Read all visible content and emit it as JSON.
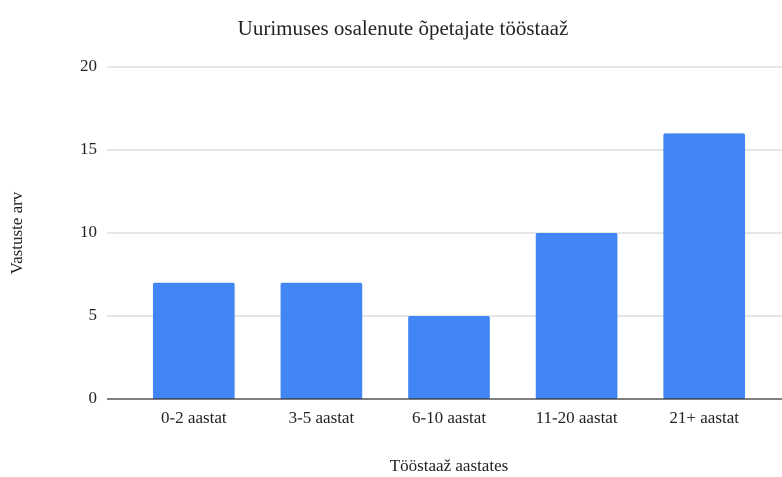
{
  "chart_data": {
    "type": "bar",
    "title": "Uurimuses osalenute õpetajate tööstaaž",
    "x_label": "Tööstaaž aastates",
    "y_label": "Vastuste arv",
    "categories": [
      "0-2 aastat",
      "3-5 aastat",
      "6-10 aastat",
      "11-20 aastat",
      "21+ aastat"
    ],
    "values": [
      7,
      7,
      5,
      10,
      16
    ],
    "color": "#4285f4",
    "ylim": [
      0,
      20
    ],
    "yticks": [
      0,
      5,
      10,
      15,
      20
    ],
    "grid": true
  }
}
